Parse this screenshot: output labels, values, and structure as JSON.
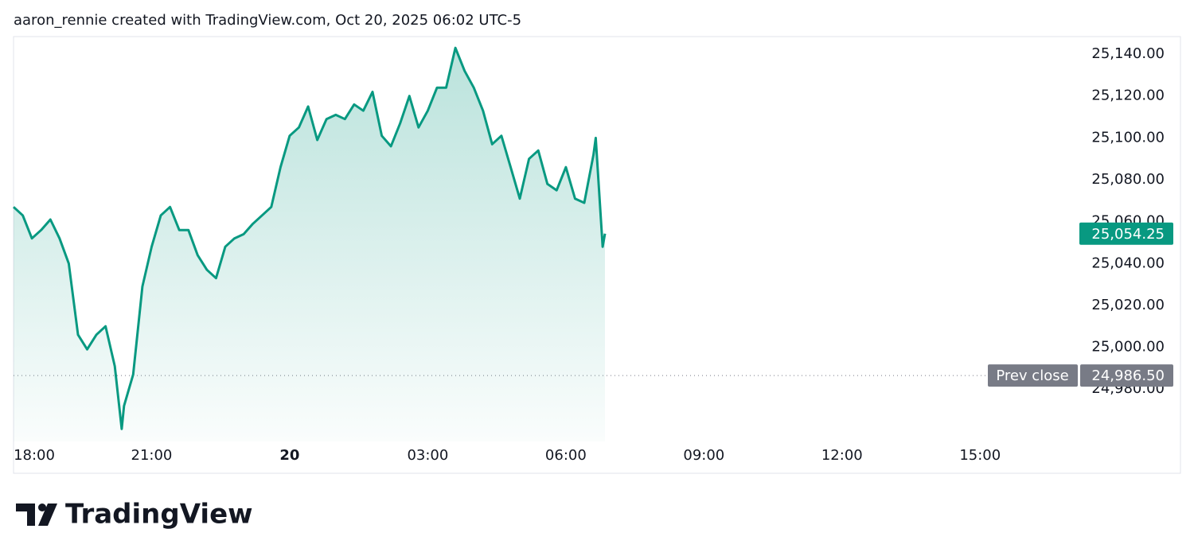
{
  "chart_data": {
    "type": "area",
    "attribution": "aaron_rennie created with TradingView.com, Oct 20, 2025 06:02 UTC-5",
    "brand": "TradingView",
    "color": "#089981",
    "x": [
      18.0,
      18.2,
      18.4,
      18.6,
      18.8,
      19.0,
      19.2,
      19.4,
      19.6,
      19.8,
      20.0,
      20.2,
      20.35,
      20.4,
      20.6,
      20.8,
      21.0,
      21.2,
      21.4,
      21.6,
      21.8,
      22.0,
      22.2,
      22.4,
      22.6,
      22.8,
      23.0,
      23.2,
      23.4,
      23.6,
      23.8,
      24.0,
      24.2,
      24.4,
      24.6,
      24.8,
      25.0,
      25.2,
      25.4,
      25.6,
      25.8,
      26.0,
      26.2,
      26.4,
      26.6,
      26.8,
      27.0,
      27.2,
      27.4,
      27.6,
      27.8,
      28.0,
      28.2,
      28.4,
      28.6,
      28.8,
      29.0,
      29.2,
      29.4,
      29.6,
      29.8,
      30.0,
      30.2,
      30.4,
      30.6,
      30.65,
      30.8,
      30.85
    ],
    "values": [
      25067,
      25063,
      25052,
      25056,
      25061,
      25052,
      25040,
      25006,
      24999,
      25006,
      25010,
      24991,
      24961,
      24972,
      24987,
      25029,
      25048,
      25063,
      25067,
      25056,
      25056,
      25044,
      25037,
      25033,
      25048,
      25052,
      25054,
      25059,
      25063,
      25067,
      25086,
      25101,
      25105,
      25115,
      25099,
      25109,
      25111,
      25109,
      25116,
      25113,
      25122,
      25101,
      25096,
      25107,
      25120,
      25105,
      25113,
      25124,
      25124,
      25143,
      25132,
      25124,
      25113,
      25097,
      25101,
      25086,
      25071,
      25090,
      25094,
      25078,
      25075,
      25086,
      25071,
      25069,
      25092,
      25100,
      25048,
      25054.25
    ],
    "xlim": [
      18,
      41.14
    ],
    "xticks": [
      {
        "value": 18,
        "label": "18:00"
      },
      {
        "value": 21,
        "label": "21:00"
      },
      {
        "value": 24,
        "label": "20"
      },
      {
        "value": 27,
        "label": "03:00"
      },
      {
        "value": 30,
        "label": "06:00"
      },
      {
        "value": 33,
        "label": "09:00"
      },
      {
        "value": 36,
        "label": "12:00"
      },
      {
        "value": 39,
        "label": "15:00"
      }
    ],
    "ylim": [
      24955,
      25148.4
    ],
    "yticks": [
      {
        "value": 24980,
        "label": "24,980.00"
      },
      {
        "value": 25000,
        "label": "25,000.00"
      },
      {
        "value": 25020,
        "label": "25,020.00"
      },
      {
        "value": 25040,
        "label": "25,040.00"
      },
      {
        "value": 25060,
        "label": "25,060.00"
      },
      {
        "value": 25080,
        "label": "25,080.00"
      },
      {
        "value": 25100,
        "label": "25,100.00"
      },
      {
        "value": 25120,
        "label": "25,120.00"
      },
      {
        "value": 25140,
        "label": "25,140.00"
      }
    ],
    "price_tag": {
      "value": 25054.25,
      "label": "25,054.25"
    },
    "reference_line": {
      "name": "Prev close",
      "value": 24986.5,
      "label": "24,986.50"
    }
  }
}
